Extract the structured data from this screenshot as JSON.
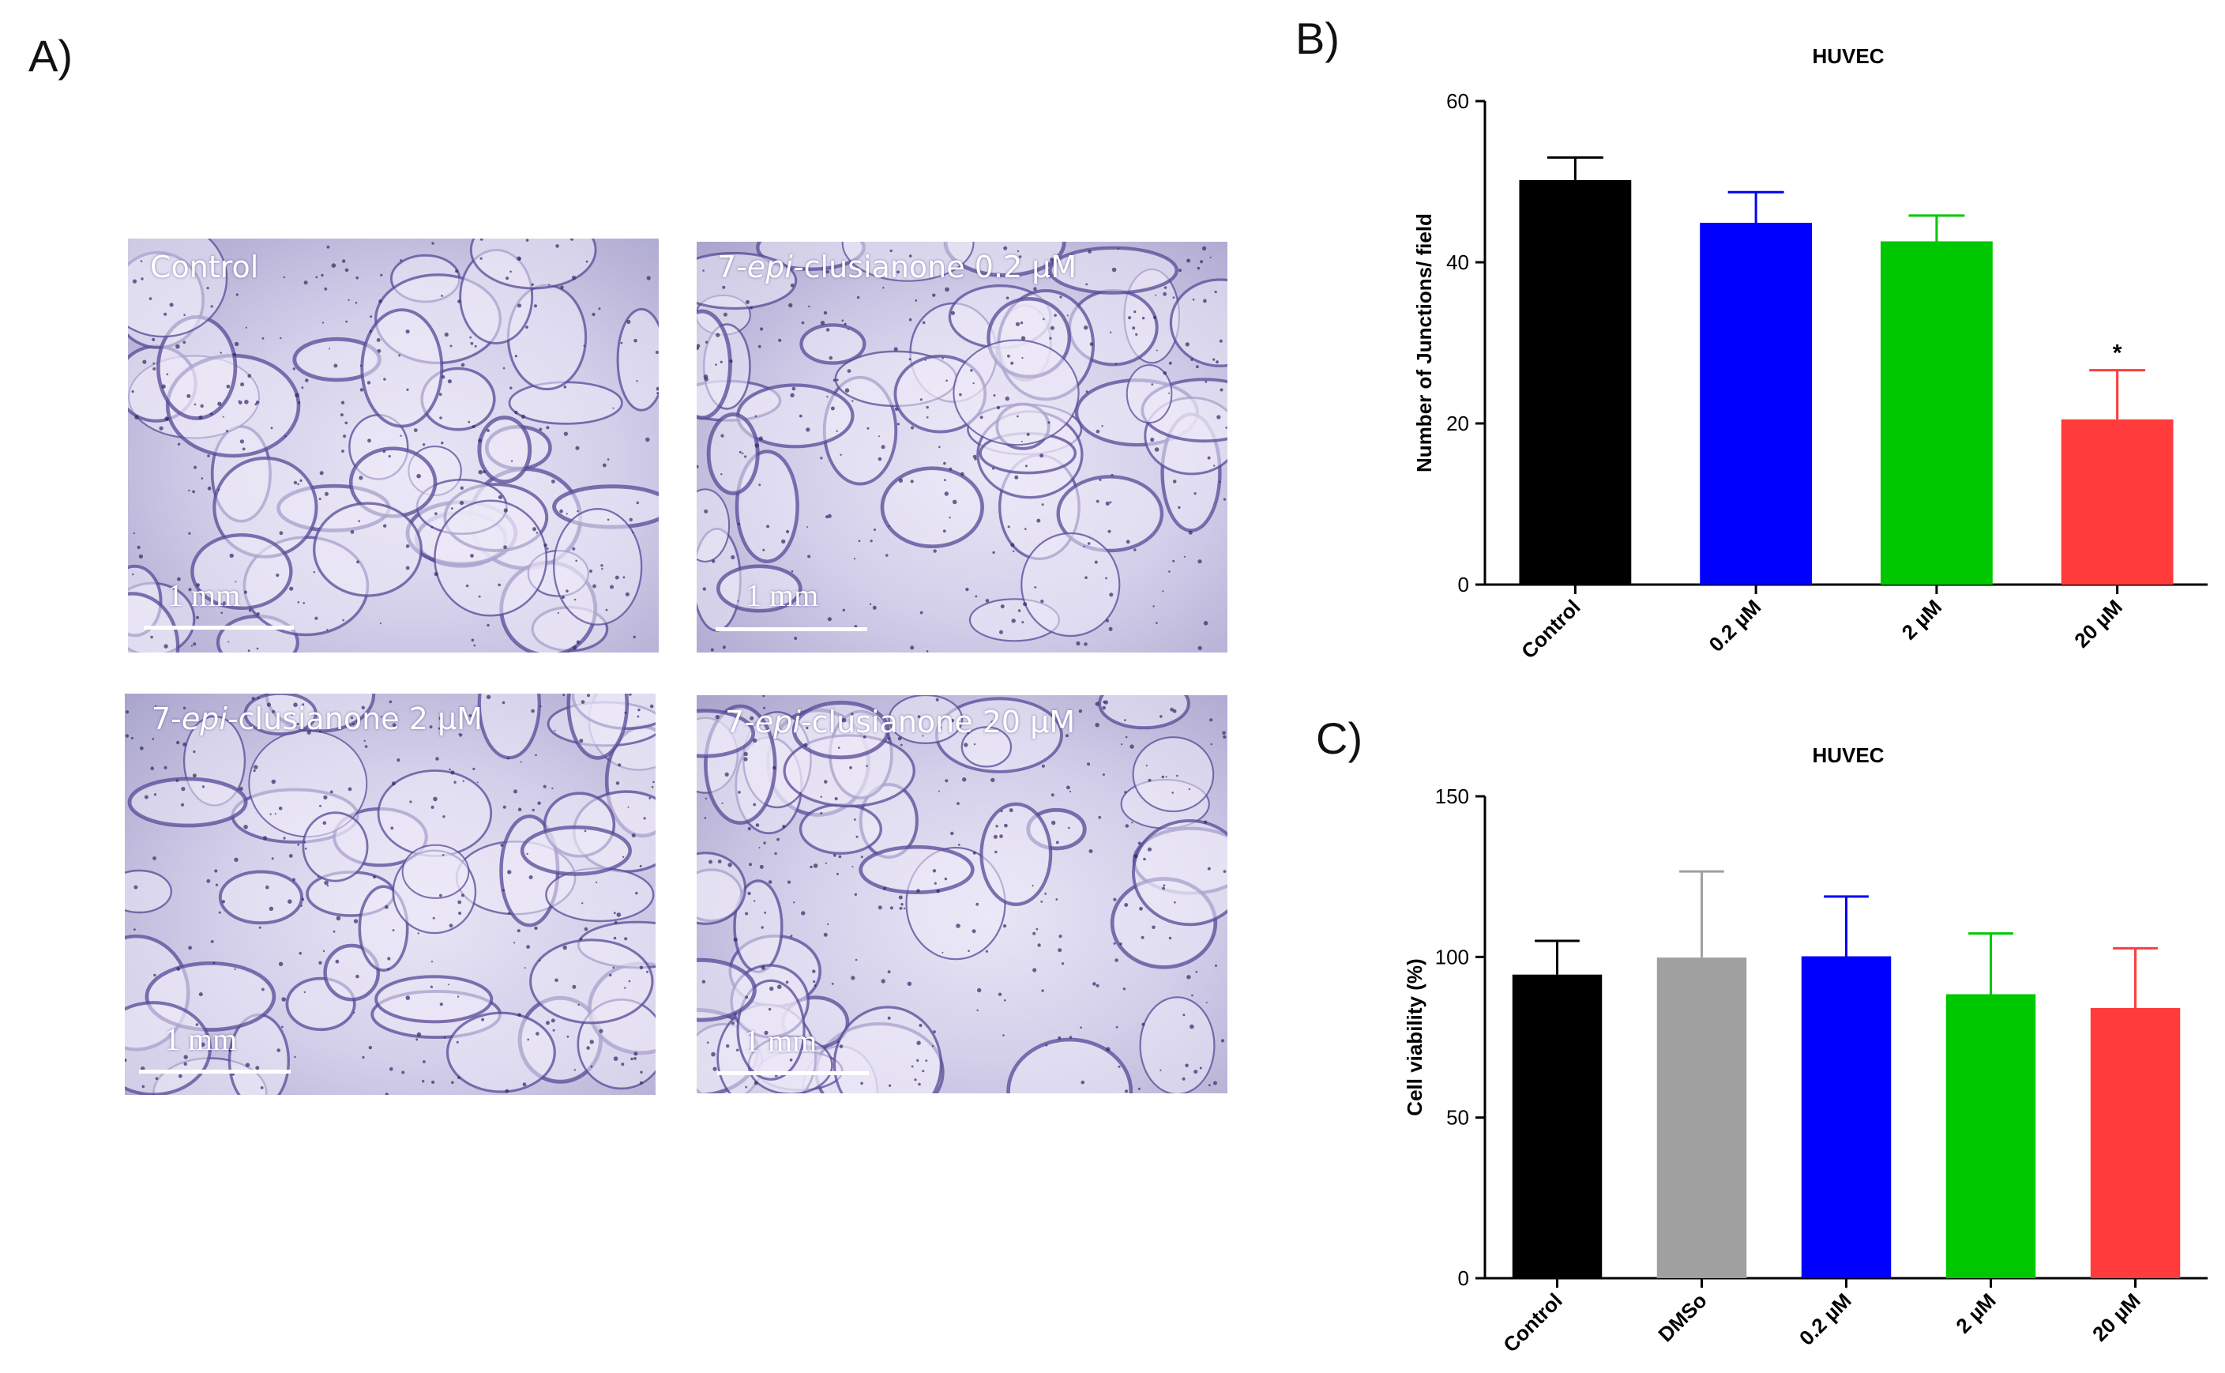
{
  "figure": {
    "panel_labels": [
      "A)",
      "B)",
      "C)"
    ],
    "micrographs": [
      {
        "label_prefix": "",
        "label_italic": "",
        "label_rest": "Control",
        "scale_label": "1 mm"
      },
      {
        "label_prefix": "7-",
        "label_italic": "epi",
        "label_rest": "-clusianone 0.2 μM",
        "scale_label": "1 mm"
      },
      {
        "label_prefix": "7-",
        "label_italic": "epi",
        "label_rest": "-clusianone 2 μM",
        "scale_label": "1 mm"
      },
      {
        "label_prefix": "7-",
        "label_italic": "epi",
        "label_rest": "-clusianone 20 μM",
        "scale_label": "1 mm"
      }
    ],
    "colors": {
      "control": "#000000",
      "dmso": "#a0a0a0",
      "c02": "#0000ff",
      "c2": "#00c800",
      "c20": "#ff3b3b"
    }
  },
  "chart_data": [
    {
      "type": "bar",
      "title": "HUVEC",
      "ylabel": "Number of Junctions/ field",
      "xlabel": "",
      "categories": [
        "Control",
        "0.2 µM",
        "2 µM",
        "20 µM"
      ],
      "values": [
        50.2,
        44.9,
        42.6,
        20.5
      ],
      "errors": [
        2.8,
        3.8,
        3.2,
        6.1
      ],
      "significance": [
        "",
        "",
        "",
        "*"
      ],
      "colors": [
        "#000000",
        "#0000ff",
        "#00c800",
        "#ff3b3b"
      ],
      "ylim": [
        0,
        60
      ],
      "yticks": [
        0,
        20,
        40,
        60
      ]
    },
    {
      "type": "bar",
      "title": "HUVEC",
      "ylabel": "Cell viability (%)",
      "xlabel": "",
      "categories": [
        "Control",
        "DMSo",
        "0.2 µM",
        "2 µM",
        "20 µM"
      ],
      "values": [
        94.5,
        99.8,
        100.2,
        88.4,
        84.1
      ],
      "errors": [
        10.5,
        26.8,
        18.6,
        18.9,
        18.6
      ],
      "colors": [
        "#000000",
        "#a0a0a0",
        "#0000ff",
        "#00c800",
        "#ff3b3b"
      ],
      "ylim": [
        0,
        150
      ],
      "yticks": [
        0,
        50,
        100,
        150
      ]
    }
  ]
}
